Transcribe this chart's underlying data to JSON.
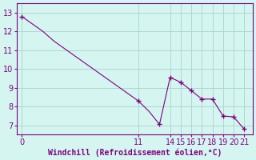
{
  "x_all": [
    0,
    1,
    2,
    3,
    4,
    5,
    6,
    7,
    8,
    9,
    10,
    11,
    12,
    13,
    14,
    15,
    16,
    17,
    18,
    19,
    20,
    21
  ],
  "y_all": [
    12.8,
    12.4,
    12.0,
    11.5,
    11.1,
    10.7,
    10.3,
    9.9,
    9.5,
    9.1,
    8.7,
    8.3,
    7.75,
    7.05,
    9.55,
    9.3,
    8.85,
    8.4,
    8.4,
    7.5,
    7.45,
    6.8
  ],
  "x_marked": [
    0,
    11,
    13,
    14,
    15,
    16,
    17,
    18,
    19,
    20,
    21
  ],
  "y_marked": [
    12.8,
    8.3,
    7.05,
    9.55,
    9.3,
    8.85,
    8.4,
    8.4,
    7.5,
    7.45,
    6.8
  ],
  "line_color": "#800080",
  "marker": "+",
  "marker_size": 5,
  "background_color": "#d4f5f0",
  "grid_color": "#b0d8cc",
  "xlabel": "Windchill (Refroidissement éolien,°C)",
  "xlabel_color": "#800080",
  "tick_color": "#800080",
  "ylabel_ticks": [
    7,
    8,
    9,
    10,
    11,
    12,
    13
  ],
  "xtick_positions": [
    0,
    11,
    14,
    15,
    16,
    17,
    18,
    19,
    20,
    21
  ],
  "xlim": [
    -0.5,
    21.8
  ],
  "ylim": [
    6.5,
    13.5
  ],
  "label_fontsize": 7,
  "tick_fontsize": 7
}
